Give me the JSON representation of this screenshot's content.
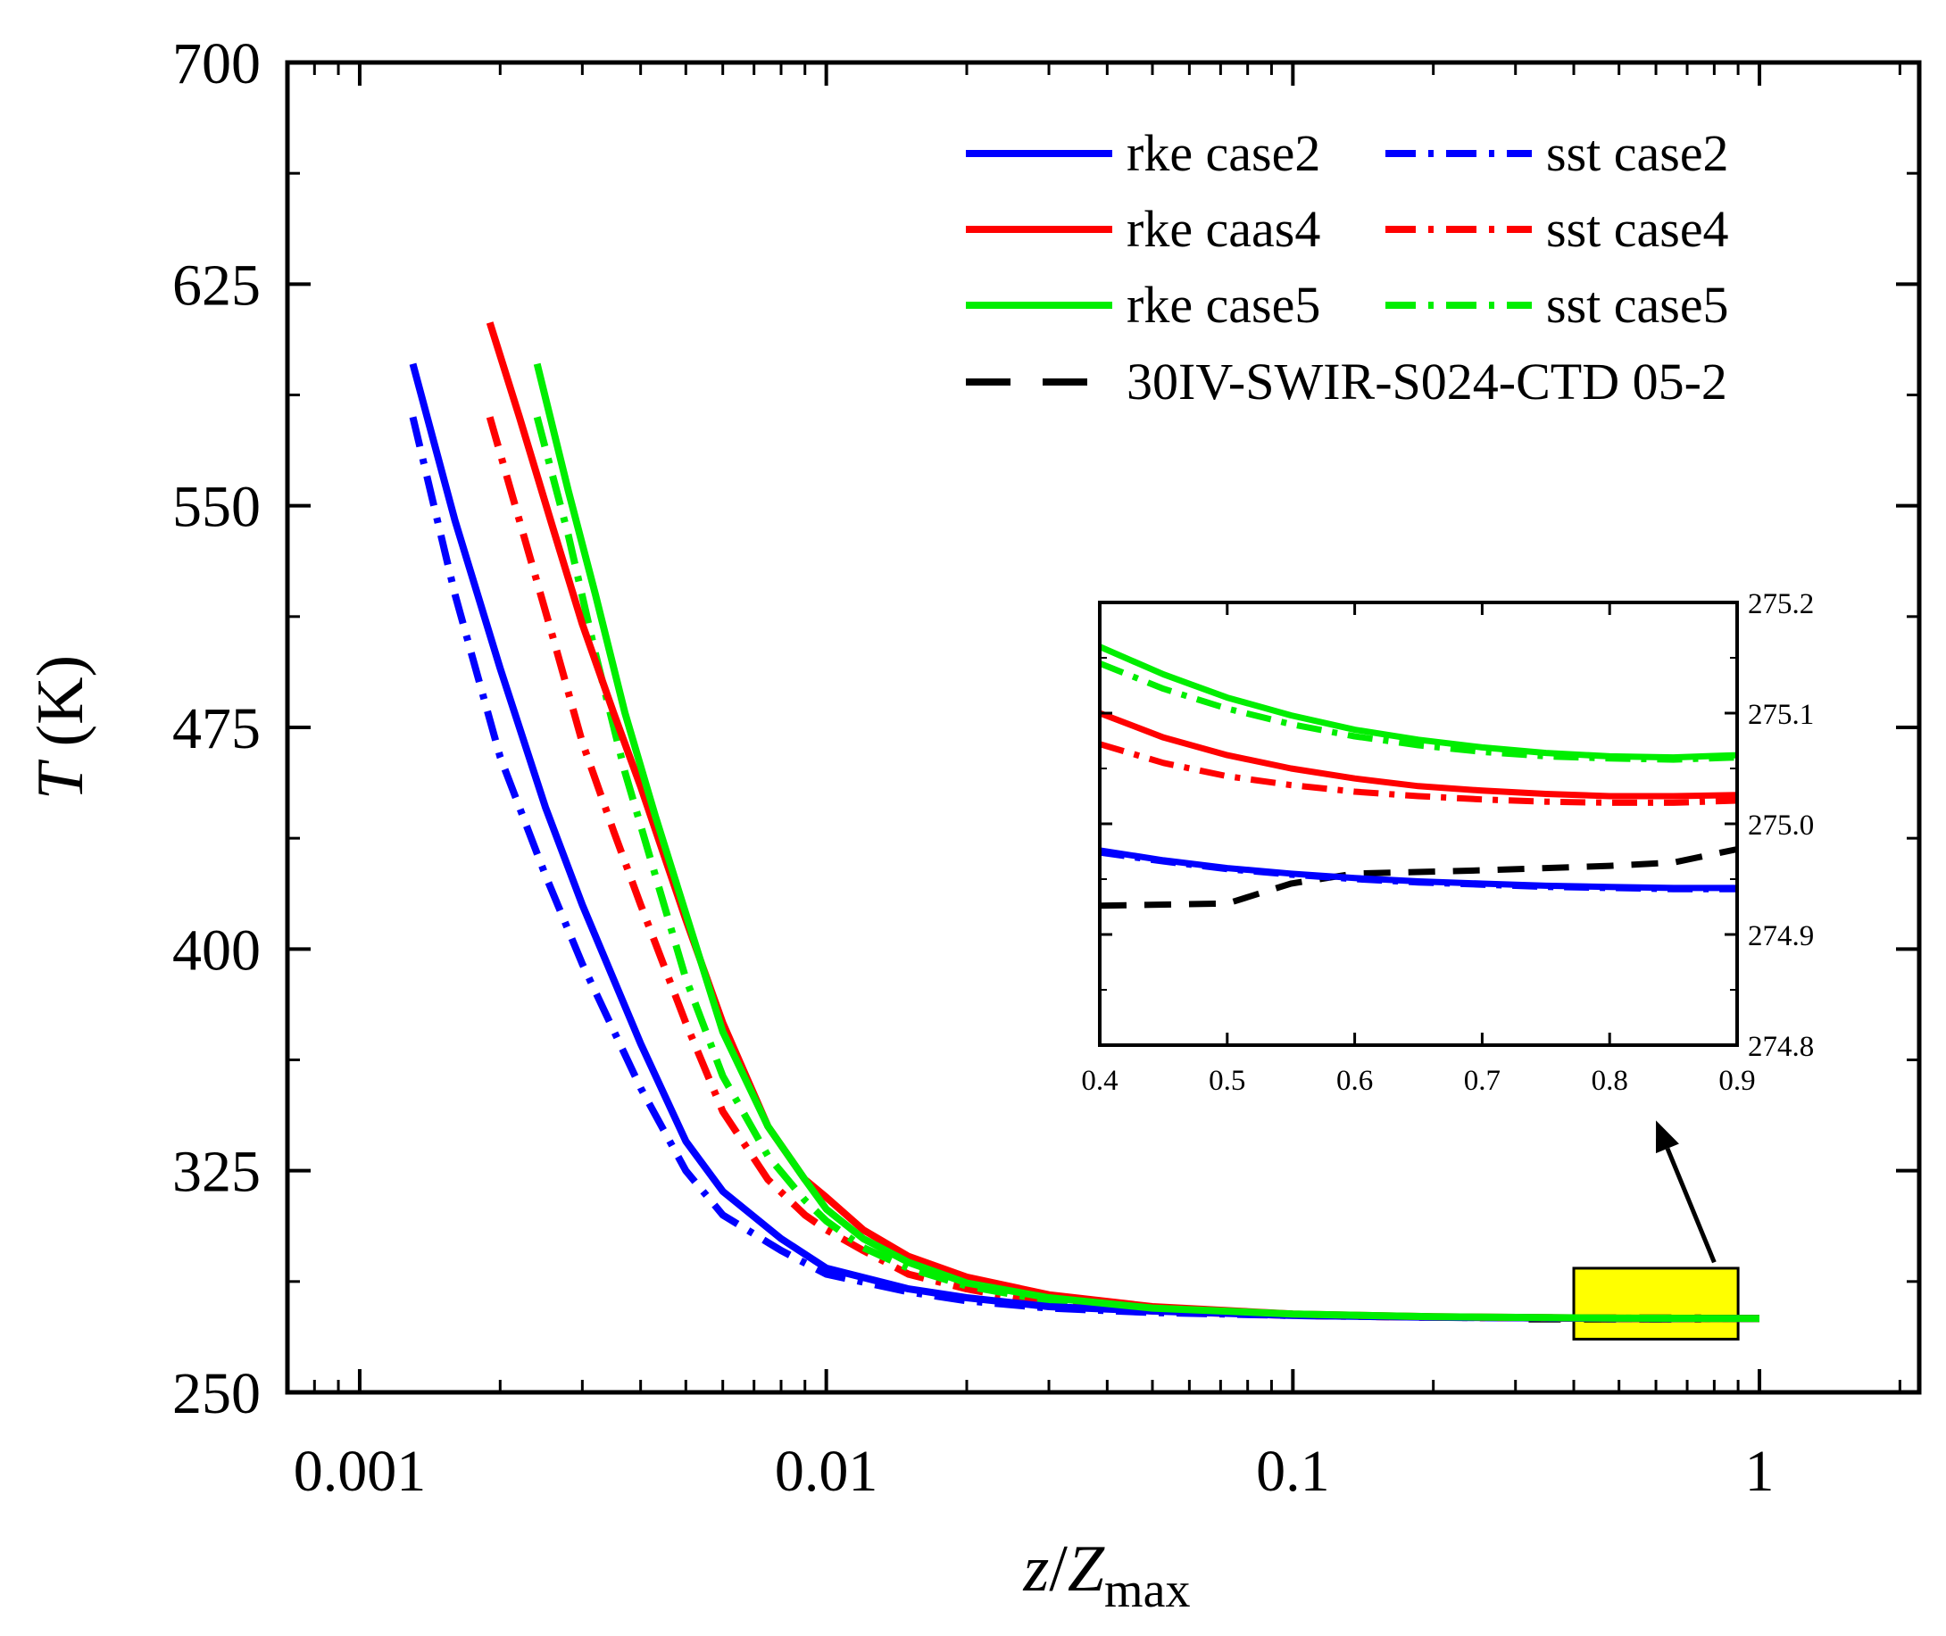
{
  "chart_data": {
    "type": "line",
    "xlabel": {
      "base": "z",
      "slash": "/",
      "main": "Z",
      "sub": "max"
    },
    "ylabel": {
      "var": "T",
      "unit": "(K)"
    },
    "xscale": "log",
    "xlim": [
      0.0007,
      2.2
    ],
    "ylim": [
      250,
      700
    ],
    "xticks": [
      0.001,
      0.01,
      0.1,
      1
    ],
    "xtick_labels": [
      "0.001",
      "0.01",
      "0.1",
      "1"
    ],
    "yticks": [
      250,
      325,
      400,
      475,
      550,
      625,
      700
    ],
    "ytick_labels": [
      "250",
      "325",
      "400",
      "475",
      "550",
      "625",
      "700"
    ],
    "legend_position": "top-right",
    "series": [
      {
        "name": "rke case2",
        "color": "#0000ff",
        "style": "solid",
        "x": [
          0.0013,
          0.0016,
          0.002,
          0.0025,
          0.003,
          0.004,
          0.005,
          0.006,
          0.008,
          0.01,
          0.015,
          0.02,
          0.03,
          0.05,
          0.1,
          0.2,
          0.5,
          1.0
        ],
        "y": [
          598,
          545,
          495,
          448,
          415,
          368,
          335,
          318,
          302,
          292,
          285,
          282,
          279,
          277.5,
          276,
          275.4,
          275,
          275
        ]
      },
      {
        "name": "sst case2",
        "color": "#0000ff",
        "style": "dashdot",
        "x": [
          0.0013,
          0.0016,
          0.002,
          0.0025,
          0.003,
          0.004,
          0.005,
          0.006,
          0.008,
          0.01,
          0.015,
          0.02,
          0.03,
          0.05,
          0.1,
          0.2,
          0.5,
          1.0
        ],
        "y": [
          580,
          520,
          465,
          425,
          395,
          353,
          325,
          310,
          298,
          290,
          284,
          281,
          278.5,
          277,
          276,
          275.4,
          275,
          275
        ]
      },
      {
        "name": "rke caas4",
        "color": "#ff0000",
        "style": "solid",
        "x": [
          0.0019,
          0.0022,
          0.0026,
          0.003,
          0.0035,
          0.004,
          0.005,
          0.006,
          0.0075,
          0.009,
          0.01,
          0.012,
          0.015,
          0.02,
          0.03,
          0.05,
          0.1,
          0.2,
          0.5,
          1.0
        ],
        "y": [
          612,
          580,
          542,
          510,
          480,
          455,
          410,
          375,
          340,
          322,
          316,
          305,
          296,
          289,
          283,
          279,
          276.5,
          275.6,
          275.1,
          275
        ]
      },
      {
        "name": "sst case4",
        "color": "#ff0000",
        "style": "dashdot",
        "x": [
          0.0019,
          0.0022,
          0.0026,
          0.003,
          0.0035,
          0.004,
          0.005,
          0.006,
          0.0075,
          0.009,
          0.01,
          0.012,
          0.015,
          0.02,
          0.03,
          0.05,
          0.1,
          0.2,
          0.5,
          1.0
        ],
        "y": [
          580,
          545,
          505,
          470,
          440,
          415,
          375,
          345,
          322,
          310,
          305,
          298,
          290,
          285,
          280,
          277.5,
          276,
          275.4,
          275,
          275
        ]
      },
      {
        "name": "rke case5",
        "color": "#00ee00",
        "style": "solid",
        "x": [
          0.0024,
          0.0028,
          0.0032,
          0.0037,
          0.0043,
          0.005,
          0.006,
          0.0075,
          0.009,
          0.01,
          0.012,
          0.015,
          0.02,
          0.03,
          0.05,
          0.1,
          0.2,
          0.5,
          1.0
        ],
        "y": [
          598,
          555,
          520,
          480,
          445,
          412,
          372,
          340,
          322,
          312,
          302,
          294,
          287,
          282,
          278.5,
          276.5,
          275.6,
          275.1,
          275
        ]
      },
      {
        "name": "sst case5",
        "color": "#00ee00",
        "style": "dashdot",
        "x": [
          0.0024,
          0.0028,
          0.0032,
          0.0037,
          0.0043,
          0.005,
          0.006,
          0.0075,
          0.009,
          0.01,
          0.012,
          0.015,
          0.02,
          0.03,
          0.05,
          0.1,
          0.2,
          0.5,
          1.0
        ],
        "y": [
          580,
          540,
          500,
          460,
          425,
          390,
          357,
          330,
          315,
          308,
          299,
          292,
          286,
          281,
          278,
          276.3,
          275.5,
          275.1,
          275
        ]
      },
      {
        "name": "30IV-SWIR-S024-CTD 05-2",
        "color": "#000000",
        "style": "dashed",
        "x": [
          0.32,
          0.45,
          0.6,
          0.75
        ],
        "y": [
          275,
          275,
          275,
          275
        ]
      }
    ],
    "highlight_box": {
      "x": [
        0.4,
        0.9
      ],
      "y": [
        268,
        292
      ],
      "color": "#ffff00"
    },
    "arrow": {
      "from": [
        0.8,
        294
      ],
      "to": [
        0.6,
        342
      ]
    },
    "inset": {
      "xlim": [
        0.4,
        0.9
      ],
      "ylim": [
        274.8,
        275.2
      ],
      "xticks": [
        0.4,
        0.5,
        0.6,
        0.7,
        0.8,
        0.9
      ],
      "xtick_labels": [
        "0.4",
        "0.5",
        "0.6",
        "0.7",
        "0.8",
        "0.9"
      ],
      "yticks": [
        274.8,
        274.9,
        275.0,
        275.1,
        275.2
      ],
      "ytick_labels": [
        "274.8",
        "274.9",
        "275.0",
        "275.1",
        "275.2"
      ],
      "series": [
        {
          "name": "rke case2",
          "color": "#0000ff",
          "style": "solid",
          "x": [
            0.4,
            0.45,
            0.5,
            0.55,
            0.6,
            0.65,
            0.7,
            0.75,
            0.8,
            0.85,
            0.9
          ],
          "y": [
            274.976,
            274.967,
            274.96,
            274.955,
            274.951,
            274.948,
            274.946,
            274.944,
            274.943,
            274.942,
            274.942
          ]
        },
        {
          "name": "sst case2",
          "color": "#0000ff",
          "style": "dashdot",
          "x": [
            0.4,
            0.45,
            0.5,
            0.55,
            0.6,
            0.65,
            0.7,
            0.75,
            0.8,
            0.85,
            0.9
          ],
          "y": [
            274.974,
            274.966,
            274.959,
            274.954,
            274.95,
            274.947,
            274.945,
            274.943,
            274.942,
            274.941,
            274.941
          ]
        },
        {
          "name": "rke caas4",
          "color": "#ff0000",
          "style": "solid",
          "x": [
            0.4,
            0.45,
            0.5,
            0.55,
            0.6,
            0.65,
            0.7,
            0.75,
            0.8,
            0.85,
            0.9
          ],
          "y": [
            275.1,
            275.078,
            275.062,
            275.05,
            275.041,
            275.034,
            275.03,
            275.027,
            275.025,
            275.025,
            275.026
          ]
        },
        {
          "name": "sst case4",
          "color": "#ff0000",
          "style": "dashdot",
          "x": [
            0.4,
            0.45,
            0.5,
            0.55,
            0.6,
            0.65,
            0.7,
            0.75,
            0.8,
            0.85,
            0.9
          ],
          "y": [
            275.072,
            275.055,
            275.043,
            275.035,
            275.029,
            275.025,
            275.022,
            275.02,
            275.019,
            275.019,
            275.021
          ]
        },
        {
          "name": "rke case5",
          "color": "#00ee00",
          "style": "solid",
          "x": [
            0.4,
            0.45,
            0.5,
            0.55,
            0.6,
            0.65,
            0.7,
            0.75,
            0.8,
            0.85,
            0.9
          ],
          "y": [
            275.16,
            275.135,
            275.114,
            275.098,
            275.085,
            275.076,
            275.069,
            275.064,
            275.061,
            275.06,
            275.062
          ]
        },
        {
          "name": "sst case5",
          "color": "#00ee00",
          "style": "dashdot",
          "x": [
            0.4,
            0.45,
            0.5,
            0.55,
            0.6,
            0.65,
            0.7,
            0.75,
            0.8,
            0.85,
            0.9
          ],
          "y": [
            275.145,
            275.122,
            275.104,
            275.09,
            275.079,
            275.071,
            275.065,
            275.061,
            275.059,
            275.058,
            275.06
          ]
        },
        {
          "name": "30IV-SWIR-S024-CTD 05-2",
          "color": "#000000",
          "style": "dashed",
          "x": [
            0.4,
            0.5,
            0.55,
            0.6,
            0.7,
            0.8,
            0.85,
            0.9
          ],
          "y": [
            274.926,
            274.928,
            274.946,
            274.955,
            274.958,
            274.962,
            274.965,
            274.977
          ]
        }
      ]
    }
  }
}
